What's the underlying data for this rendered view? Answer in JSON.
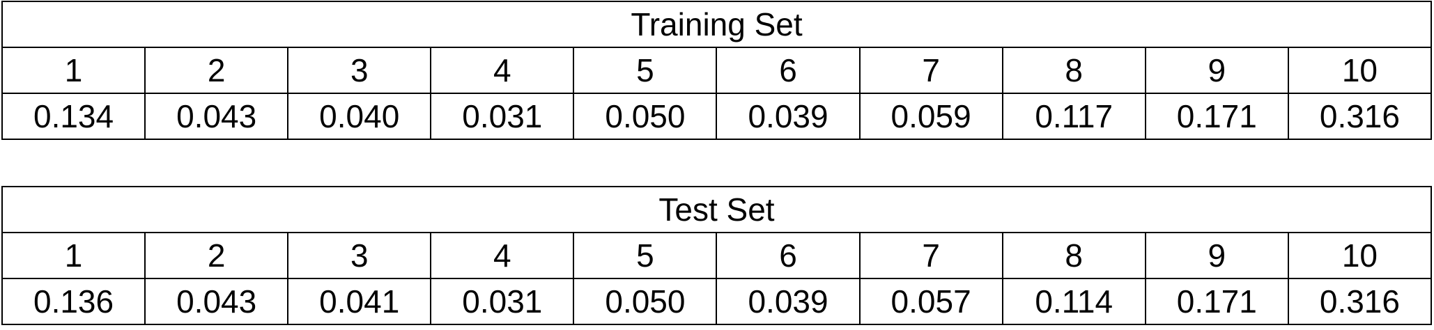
{
  "tables": [
    {
      "title": "Training Set",
      "columns": [
        "1",
        "2",
        "3",
        "4",
        "5",
        "6",
        "7",
        "8",
        "9",
        "10"
      ],
      "values": [
        "0.134",
        "0.043",
        "0.040",
        "0.031",
        "0.050",
        "0.039",
        "0.059",
        "0.117",
        "0.171",
        "0.316"
      ]
    },
    {
      "title": "Test Set",
      "columns": [
        "1",
        "2",
        "3",
        "4",
        "5",
        "6",
        "7",
        "8",
        "9",
        "10"
      ],
      "values": [
        "0.136",
        "0.043",
        "0.041",
        "0.031",
        "0.050",
        "0.039",
        "0.057",
        "0.114",
        "0.171",
        "0.316"
      ]
    }
  ]
}
